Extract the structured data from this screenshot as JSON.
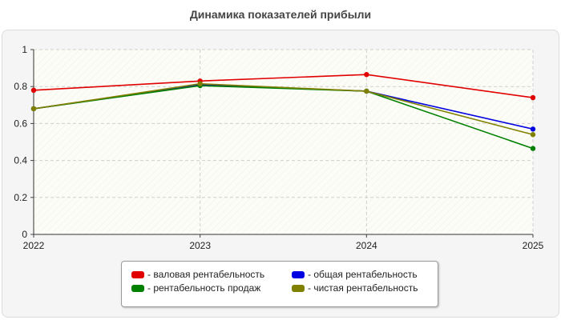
{
  "chart_data": {
    "type": "line",
    "title": "Динамика показателей прибыли",
    "x": [
      "2022",
      "2023",
      "2024",
      "2025"
    ],
    "ylim": [
      0,
      1
    ],
    "yticks": [
      0,
      0.2,
      0.4,
      0.6,
      0.8,
      1
    ],
    "ytick_labels": [
      "0",
      "0.2",
      "0.4",
      "0.6",
      "0.8",
      "1"
    ],
    "grid": true,
    "legend_position": "bottom",
    "series": [
      {
        "name": "валовая рентабельность",
        "color": "#e00000",
        "values": [
          0.78,
          0.83,
          0.865,
          0.74
        ]
      },
      {
        "name": "общая рентабельность",
        "color": "#0000e0",
        "values": [
          0.68,
          0.81,
          0.775,
          0.57
        ]
      },
      {
        "name": "рентабельность продаж",
        "color": "#008000",
        "values": [
          0.68,
          0.805,
          0.775,
          0.465
        ]
      },
      {
        "name": "чистая рентабельность",
        "color": "#808000",
        "values": [
          0.68,
          0.815,
          0.775,
          0.54
        ]
      }
    ]
  }
}
